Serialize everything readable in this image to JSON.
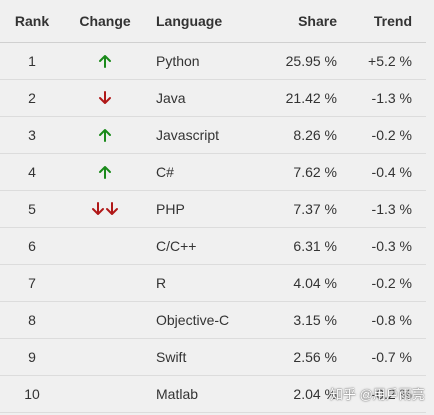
{
  "header": {
    "rank": "Rank",
    "change": "Change",
    "language": "Language",
    "share": "Share",
    "trend": "Trend"
  },
  "colors": {
    "up": "#1a8a1a",
    "down": "#b01818"
  },
  "rows": [
    {
      "rank": "1",
      "change": [
        "up"
      ],
      "language": "Python",
      "share": "25.95 %",
      "trend": "+5.2 %"
    },
    {
      "rank": "2",
      "change": [
        "down"
      ],
      "language": "Java",
      "share": "21.42 %",
      "trend": "-1.3 %"
    },
    {
      "rank": "3",
      "change": [
        "up"
      ],
      "language": "Javascript",
      "share": "8.26 %",
      "trend": "-0.2 %"
    },
    {
      "rank": "4",
      "change": [
        "up"
      ],
      "language": "C#",
      "share": "7.62 %",
      "trend": "-0.4 %"
    },
    {
      "rank": "5",
      "change": [
        "down",
        "down"
      ],
      "language": "PHP",
      "share": "7.37 %",
      "trend": "-1.3 %"
    },
    {
      "rank": "6",
      "change": [],
      "language": "C/C++",
      "share": "6.31 %",
      "trend": "-0.3 %"
    },
    {
      "rank": "7",
      "change": [],
      "language": "R",
      "share": "4.04 %",
      "trend": "-0.2 %"
    },
    {
      "rank": "8",
      "change": [],
      "language": "Objective-C",
      "share": "3.15 %",
      "trend": "-0.8 %"
    },
    {
      "rank": "9",
      "change": [],
      "language": "Swift",
      "share": "2.56 %",
      "trend": "-0.7 %"
    },
    {
      "rank": "10",
      "change": [],
      "language": "Matlab",
      "share": "2.04 %",
      "trend": "-0.2 %"
    }
  ],
  "watermark": "知乎 @用戶雨亮"
}
